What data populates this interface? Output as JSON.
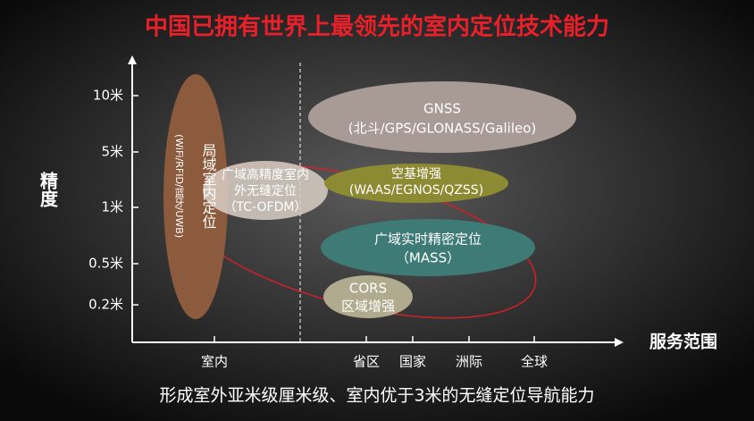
{
  "header": {
    "title": "中国已拥有世界上最领先的室内定位技术能力"
  },
  "axes": {
    "y_label": "精度",
    "x_label": "服务范围",
    "y_ticks": [
      "10米",
      "5米",
      "1米",
      "0.5米",
      "0.2米"
    ],
    "x_ticks": [
      "室内",
      "省区",
      "国家",
      "洲际",
      "全球"
    ]
  },
  "regions": [
    {
      "lines": [
        "局域室内定位",
        "(WiFi/RFID/蓝牙/UWB)"
      ]
    },
    {
      "lines": [
        "广域高精度室内",
        "外无缝定位",
        "（TC-OFDM）"
      ]
    },
    {
      "lines": [
        "GNSS",
        "(北斗/GPS/GLONASS/Galileo)"
      ]
    },
    {
      "lines": [
        "空基增强",
        "(WAAS/EGNOS/QZSS)"
      ]
    },
    {
      "lines": [
        "广域实时精密定位",
        "（MASS）"
      ]
    },
    {
      "lines": [
        "CORS",
        "区域增强"
      ]
    }
  ],
  "footer": {
    "text": "形成室外亚米级厘米级、室内优于3米的无缝定位导航能力"
  }
}
